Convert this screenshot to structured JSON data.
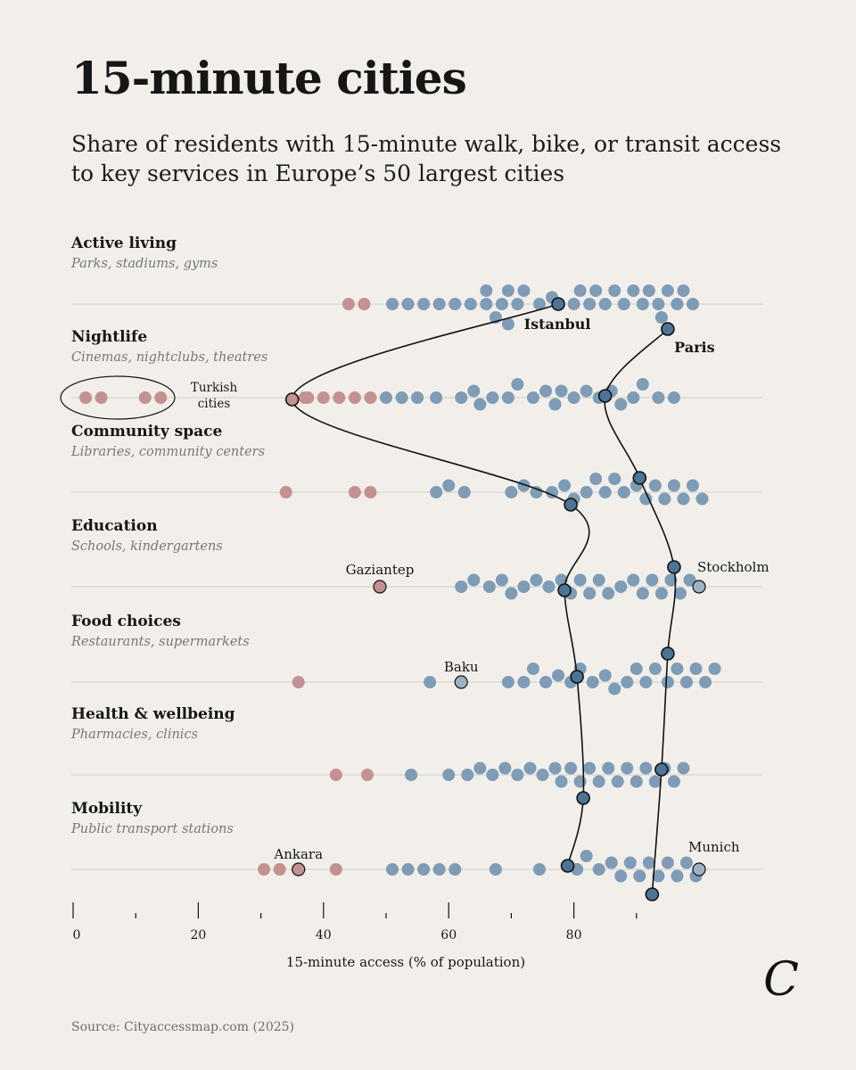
{
  "title": "15-minute cities",
  "subtitle": "Share of residents with 15-minute walk, bike, or transit access to key services in Europe’s 50 largest cities",
  "source": "Source: Cityaccessmap.com (2025)",
  "logo": "C",
  "colors": {
    "city": "#7e9cb5",
    "turkish": "#c49193",
    "highlight": "#4c7496",
    "background": "#f2efeb"
  },
  "chart_data": {
    "type": "scatter",
    "xlabel": "15-minute access (% of population)",
    "xlim": [
      0,
      100
    ],
    "x_ticks": [
      0,
      20,
      40,
      60,
      80
    ],
    "x_minor_ticks": [
      10,
      30,
      50,
      70,
      90
    ],
    "rows": [
      {
        "name": "Active living",
        "sub": "Parks, stadiums, gyms",
        "turkish": [
          44,
          46.5
        ],
        "values": [
          51,
          53.5,
          56,
          58.5,
          61,
          63.5,
          66,
          68.5,
          66,
          67.5,
          69.5,
          71,
          69.5,
          72,
          74.5,
          76.5,
          80,
          81,
          82.5,
          83.5,
          85,
          86.5,
          88,
          89.5,
          91,
          92,
          93.5,
          94,
          95,
          96.5,
          97.5,
          99
        ]
      },
      {
        "name": "Nightlife",
        "sub": "Cinemas, nightclubs, theatres",
        "turkish": [
          2,
          4.5,
          11.5,
          14,
          37,
          37.5,
          40,
          42.5,
          45,
          47.5
        ],
        "values": [
          50,
          52.5,
          55,
          58,
          62,
          64,
          65,
          67,
          69.5,
          71,
          73.5,
          75.5,
          77,
          78,
          80,
          82,
          84,
          86,
          87.5,
          89.5,
          91,
          93.5,
          96
        ]
      },
      {
        "name": "Community space",
        "sub": "Libraries, community centers",
        "turkish": [
          34,
          45,
          47.5
        ],
        "values": [
          58,
          60,
          62.5,
          70,
          72,
          74,
          76.5,
          78.5,
          80,
          82,
          83.5,
          85,
          86.5,
          88,
          90,
          91.5,
          93,
          94.5,
          96,
          97.5,
          99,
          100.5
        ]
      },
      {
        "name": "Education",
        "sub": "Schools, kindergartens",
        "turkish": [],
        "values": [
          62,
          64,
          66.5,
          68.5,
          70,
          72,
          74,
          76,
          78,
          79.5,
          81,
          82.5,
          84,
          85.5,
          87.5,
          89.5,
          91,
          92.5,
          94,
          95.5,
          97,
          98.5
        ]
      },
      {
        "name": "Food choices",
        "sub": "Restaurants, supermarkets",
        "turkish": [
          36
        ],
        "values": [
          57,
          69.5,
          72,
          73.5,
          75.5,
          77.5,
          79.5,
          81,
          83,
          85,
          86.5,
          88.5,
          90,
          91.5,
          93,
          95,
          96.5,
          98,
          99.5,
          101,
          102.5
        ]
      },
      {
        "name": "Health & wellbeing",
        "sub": "Pharmacies, clinics",
        "turkish": [
          42,
          47
        ],
        "values": [
          54,
          60,
          63,
          65,
          67,
          69,
          71,
          73,
          75,
          77,
          78,
          79.5,
          81,
          82.5,
          84,
          85.5,
          87,
          88.5,
          90,
          91.5,
          93,
          94.5,
          96,
          97.5
        ]
      },
      {
        "name": "Mobility",
        "sub": "Public transport stations",
        "turkish": [
          30.5,
          33,
          42
        ],
        "values": [
          51,
          53.5,
          56,
          58.5,
          61,
          67.5,
          74.5,
          80.5,
          82,
          84,
          86,
          87.5,
          89,
          90.5,
          92,
          93.5,
          95,
          96.5,
          98,
          99.5
        ]
      }
    ],
    "lines": [
      {
        "city": "Istanbul",
        "values": [
          77.5,
          35,
          79.5,
          78.5,
          80.5,
          81.5,
          79
        ]
      },
      {
        "city": "Paris",
        "values": [
          95,
          85,
          90.5,
          96,
          95,
          94,
          92.5
        ]
      }
    ],
    "labeled_points": [
      {
        "city": "Gaziantep",
        "row": "Education",
        "value": 49,
        "group": "turkish"
      },
      {
        "city": "Stockholm",
        "row": "Education",
        "value": 100,
        "group": "city"
      },
      {
        "city": "Baku",
        "row": "Food choices",
        "value": 62,
        "group": "city"
      },
      {
        "city": "Ankara",
        "row": "Mobility",
        "value": 36,
        "group": "turkish"
      },
      {
        "city": "Munich",
        "row": "Mobility",
        "value": 100,
        "group": "city"
      }
    ],
    "group_annotation": "Turkish cities"
  }
}
